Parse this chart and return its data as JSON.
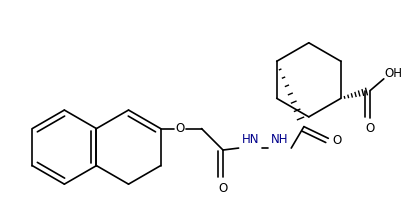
{
  "bg_color": "#ffffff",
  "line_color": "#000000",
  "nh_color": "#00008b",
  "figsize": [
    4.01,
    2.24
  ],
  "dpi": 100,
  "xlim": [
    0,
    401
  ],
  "ylim": [
    0,
    224
  ]
}
